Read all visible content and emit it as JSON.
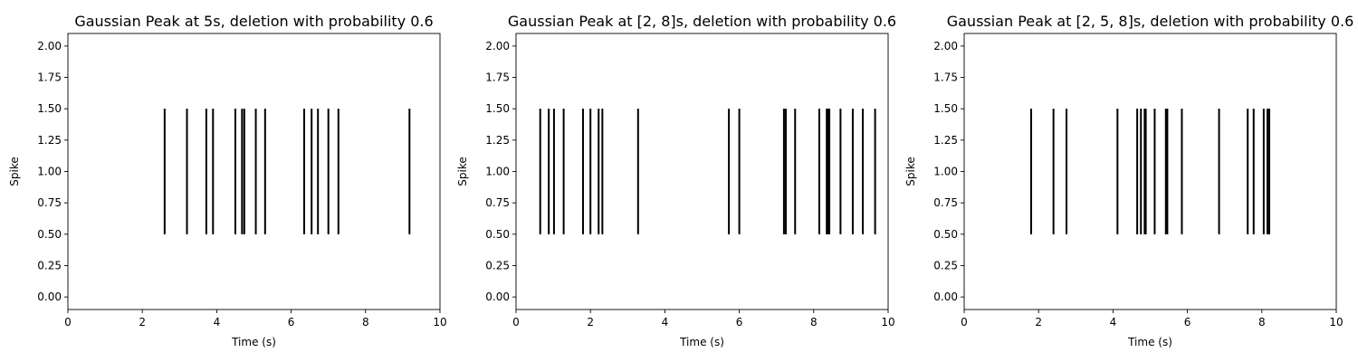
{
  "chart_data": [
    {
      "type": "eventplot",
      "title": "Gaussian Peak at 5s, deletion with probability 0.6",
      "xlabel": "Time (s)",
      "ylabel": "Spike",
      "xlim": [
        0,
        10
      ],
      "ylim": [
        -0.1,
        2.1
      ],
      "xticks": [
        "0",
        "2",
        "4",
        "6",
        "8",
        "10"
      ],
      "yticks": [
        "0.00",
        "0.25",
        "0.50",
        "0.75",
        "1.00",
        "1.25",
        "1.50",
        "1.75",
        "2.00"
      ],
      "line_range": [
        0.5,
        1.5
      ],
      "color": "#000000",
      "events": [
        2.6,
        3.2,
        3.72,
        3.9,
        4.5,
        4.68,
        4.74,
        5.05,
        5.3,
        6.35,
        6.55,
        6.72,
        7.0,
        7.27,
        9.18
      ]
    },
    {
      "type": "eventplot",
      "title": "Gaussian Peak at [2, 8]s, deletion with probability 0.6",
      "xlabel": "Time (s)",
      "ylabel": "Spike",
      "xlim": [
        0,
        10
      ],
      "ylim": [
        -0.1,
        2.1
      ],
      "xticks": [
        "0",
        "2",
        "4",
        "6",
        "8",
        "10"
      ],
      "yticks": [
        "0.00",
        "0.25",
        "0.50",
        "0.75",
        "1.00",
        "1.25",
        "1.50",
        "1.75",
        "2.00"
      ],
      "line_range": [
        0.5,
        1.5
      ],
      "color": "#000000",
      "events": [
        0.65,
        0.88,
        1.02,
        1.28,
        1.8,
        2.0,
        2.22,
        2.32,
        3.28,
        5.72,
        6.0,
        7.2,
        7.25,
        7.5,
        8.15,
        8.35,
        8.38,
        8.42,
        8.72,
        9.05,
        9.32,
        9.65
      ]
    },
    {
      "type": "eventplot",
      "title": "Gaussian Peak at [2, 5, 8]s, deletion with probability 0.6",
      "xlabel": "Time (s)",
      "ylabel": "Spike",
      "xlim": [
        0,
        10
      ],
      "ylim": [
        -0.1,
        2.1
      ],
      "xticks": [
        "0",
        "2",
        "4",
        "6",
        "8",
        "10"
      ],
      "yticks": [
        "0.00",
        "0.25",
        "0.50",
        "0.75",
        "1.00",
        "1.25",
        "1.50",
        "1.75",
        "2.00"
      ],
      "line_range": [
        0.5,
        1.5
      ],
      "color": "#000000",
      "events": [
        1.8,
        2.4,
        2.75,
        4.12,
        4.65,
        4.75,
        4.85,
        4.88,
        5.12,
        5.42,
        5.46,
        5.85,
        6.85,
        7.62,
        7.78,
        8.05,
        8.15,
        8.2
      ]
    }
  ]
}
